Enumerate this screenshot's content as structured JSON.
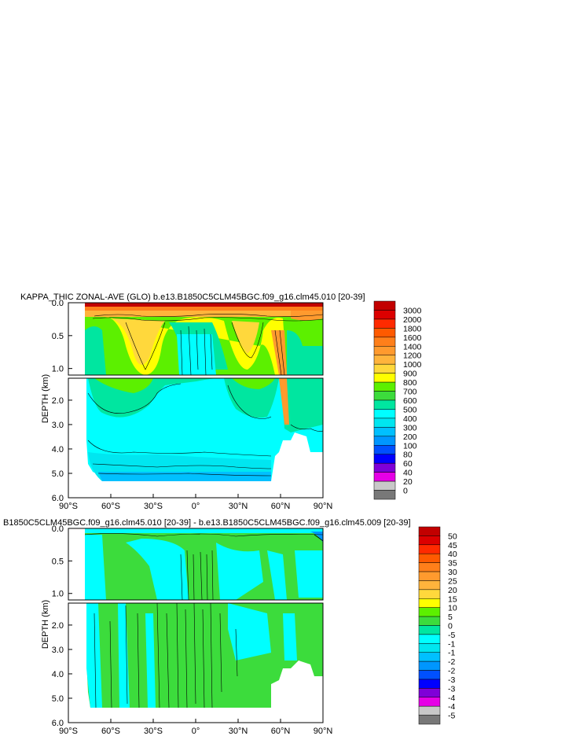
{
  "chart_data": [
    {
      "type": "heatmap",
      "title": "KAPPA_THIC ZONAL-AVE (GLO) b.e13.B1850C5CLM45BGC.f09_g16.clm45.010 [20-39]",
      "ylabel": "DEPTH (km)",
      "xlabel": "",
      "x_ticks": [
        "90°S",
        "60°S",
        "30°S",
        "0°",
        "30°N",
        "60°N",
        "90°N"
      ],
      "y_ticks_upper": [
        "0.0",
        "0.5",
        "1.0"
      ],
      "y_ticks_lower": [
        "2.0",
        "3.0",
        "4.0",
        "5.0",
        "6.0"
      ],
      "xlim": [
        -90,
        90
      ],
      "ylim_km": [
        0,
        6
      ],
      "colorbar_labels": [
        "3000",
        "2000",
        "1800",
        "1600",
        "1400",
        "1200",
        "1000",
        "900",
        "800",
        "700",
        "600",
        "500",
        "400",
        "300",
        "200",
        "100",
        "80",
        "60",
        "40",
        "20",
        "0"
      ],
      "colorbar_colors": [
        "#c20000",
        "#dc0000",
        "#ff2a00",
        "#ff5a00",
        "#ff7f1a",
        "#ff9a2e",
        "#ffb43c",
        "#ffd83c",
        "#ffff00",
        "#5cf000",
        "#3cdc3c",
        "#00e6a0",
        "#00ffff",
        "#00e6f0",
        "#00c0ff",
        "#0096ff",
        "#0050ff",
        "#0000ff",
        "#7f00d8",
        "#e600e6",
        "#c8c8c8",
        "#787878"
      ]
    },
    {
      "type": "heatmap",
      "title": "B1850C5CLM45BGC.f09_g16.clm45.010 [20-39] - b.e13.B1850C5CLM45BGC.f09_g16.clm45.009 [20-39]",
      "ylabel": "DEPTH (km)",
      "xlabel": "",
      "x_ticks": [
        "90°S",
        "60°S",
        "30°S",
        "0°",
        "30°N",
        "60°N",
        "90°N"
      ],
      "y_ticks_upper": [
        "0.0",
        "0.5",
        "1.0"
      ],
      "y_ticks_lower": [
        "2.0",
        "3.0",
        "4.0",
        "5.0",
        "6.0"
      ],
      "xlim": [
        -90,
        90
      ],
      "ylim_km": [
        0,
        6
      ],
      "colorbar_labels": [
        "50",
        "45",
        "40",
        "35",
        "30",
        "25",
        "20",
        "15",
        "10",
        "5",
        "0",
        "-5",
        "-1",
        "-1",
        "-2",
        "-2",
        "-3",
        "-3",
        "-4",
        "-4",
        "-5"
      ],
      "colorbar_colors": [
        "#c20000",
        "#dc0000",
        "#ff2a00",
        "#ff5a00",
        "#ff7f1a",
        "#ff9a2e",
        "#ffb43c",
        "#ffd83c",
        "#ffff00",
        "#5cf000",
        "#3cdc3c",
        "#00e6a0",
        "#00ffff",
        "#00e6f0",
        "#00c0ff",
        "#0096ff",
        "#0050ff",
        "#0000ff",
        "#7f00d8",
        "#e600e6",
        "#c8c8c8",
        "#787878"
      ]
    }
  ]
}
